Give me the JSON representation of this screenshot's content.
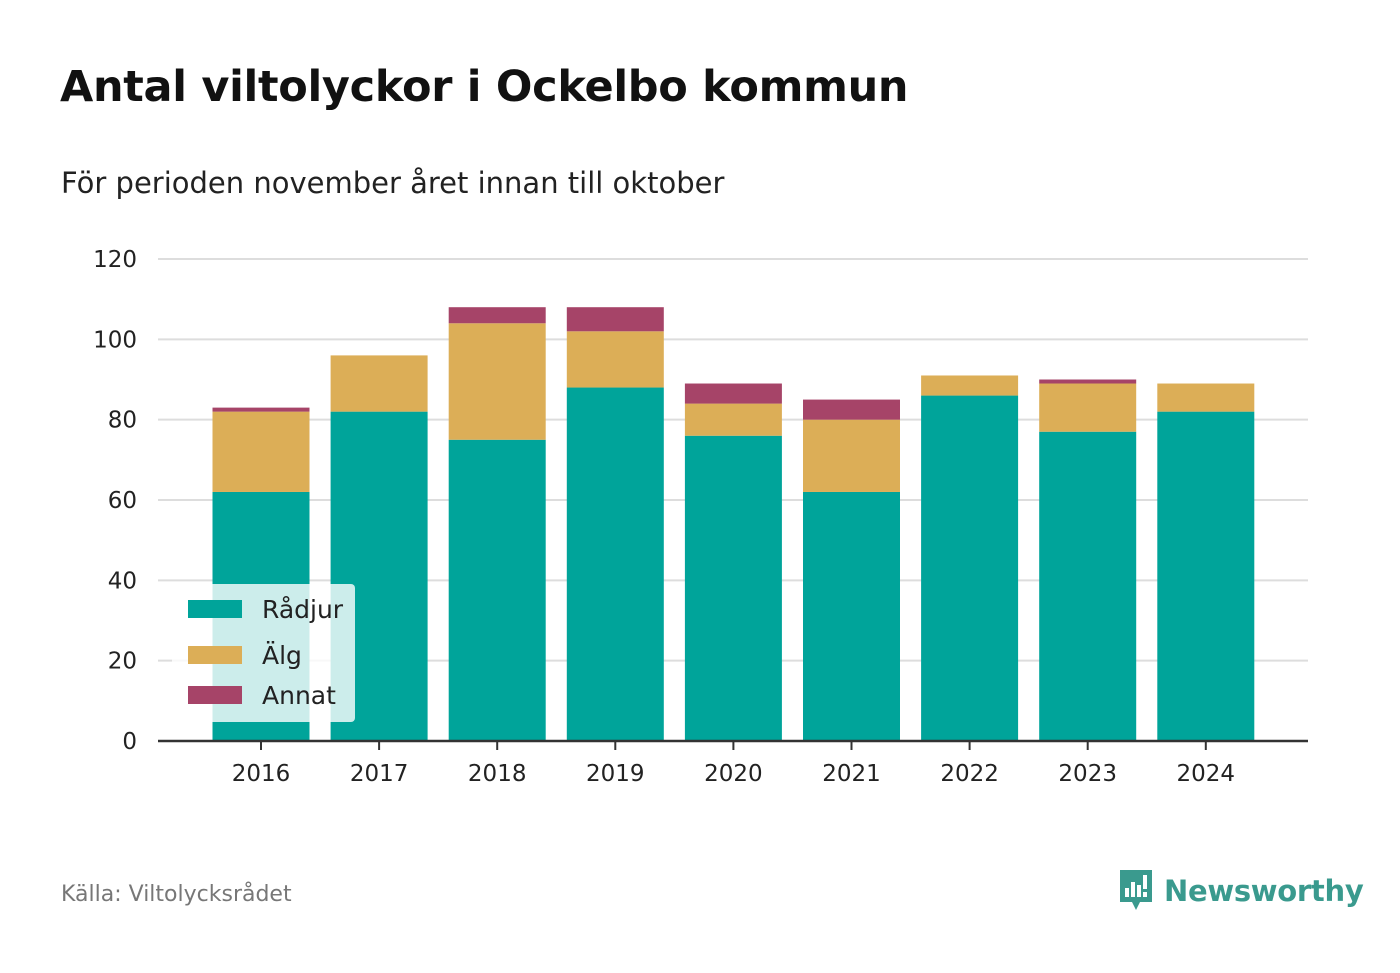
{
  "header": {
    "title": "Antal viltolyckor i Ockelbo kommun",
    "subtitle": "För perioden november året innan till oktober"
  },
  "footer": {
    "source": "Källa: Viltolycksrådet",
    "brand": "Newsworthy"
  },
  "colors": {
    "radjur": "#00a49a",
    "alg": "#dcae57",
    "annat": "#a64468",
    "grid": "#dddddd",
    "axis": "#333333",
    "brand": "#3a9a8e"
  },
  "icons": {
    "brand_logo": "bar-chart-speech-bubble-icon"
  },
  "chart_data": {
    "type": "bar",
    "stacked": true,
    "categories": [
      "2016",
      "2017",
      "2018",
      "2019",
      "2020",
      "2021",
      "2022",
      "2023",
      "2024"
    ],
    "series": [
      {
        "name": "Rådjur",
        "color": "#00a49a",
        "values": [
          62,
          82,
          75,
          88,
          76,
          62,
          86,
          77,
          82
        ]
      },
      {
        "name": "Älg",
        "color": "#dcae57",
        "values": [
          20,
          14,
          29,
          14,
          8,
          18,
          5,
          12,
          7
        ]
      },
      {
        "name": "Annat",
        "color": "#a64468",
        "values": [
          1,
          0,
          4,
          6,
          5,
          5,
          0,
          1,
          0
        ]
      }
    ],
    "ylim": [
      0,
      120
    ],
    "yticks": [
      0,
      20,
      40,
      60,
      80,
      100,
      120
    ],
    "grid": true,
    "legend_position": "bottom-left"
  }
}
